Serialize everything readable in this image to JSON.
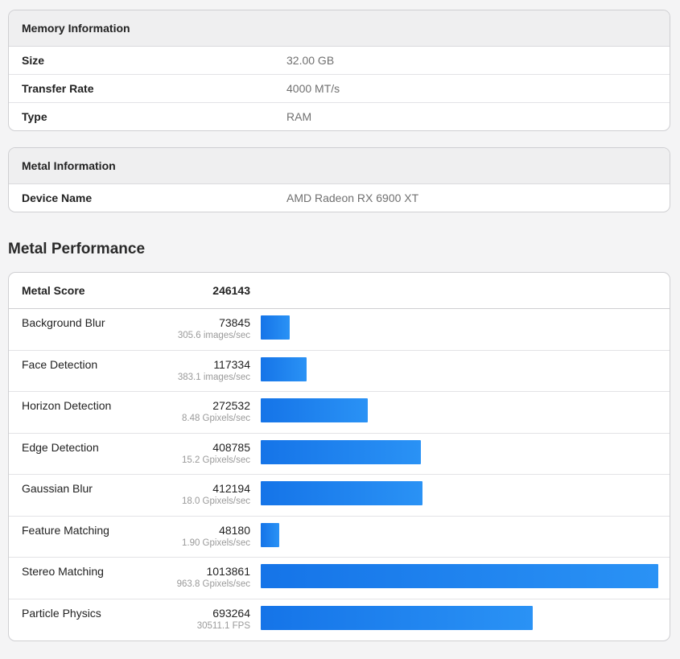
{
  "memory": {
    "title": "Memory Information",
    "rows": [
      {
        "label": "Size",
        "value": "32.00 GB"
      },
      {
        "label": "Transfer Rate",
        "value": "4000 MT/s"
      },
      {
        "label": "Type",
        "value": "RAM"
      }
    ]
  },
  "metal_info": {
    "title": "Metal Information",
    "rows": [
      {
        "label": "Device Name",
        "value": "AMD Radeon RX 6900 XT"
      }
    ]
  },
  "performance": {
    "title": "Metal Performance",
    "score_label": "Metal Score",
    "score_value": "246143",
    "max_score": 1013861,
    "bar_color_start": "#1574e8",
    "bar_color_end": "#2a92f5",
    "tests": [
      {
        "name": "Background Blur",
        "score": "73845",
        "rate": "305.6 images/sec",
        "value": 73845
      },
      {
        "name": "Face Detection",
        "score": "117334",
        "rate": "383.1 images/sec",
        "value": 117334
      },
      {
        "name": "Horizon Detection",
        "score": "272532",
        "rate": "8.48 Gpixels/sec",
        "value": 272532
      },
      {
        "name": "Edge Detection",
        "score": "408785",
        "rate": "15.2 Gpixels/sec",
        "value": 408785
      },
      {
        "name": "Gaussian Blur",
        "score": "412194",
        "rate": "18.0 Gpixels/sec",
        "value": 412194
      },
      {
        "name": "Feature Matching",
        "score": "48180",
        "rate": "1.90 Gpixels/sec",
        "value": 48180
      },
      {
        "name": "Stereo Matching",
        "score": "1013861",
        "rate": "963.8 Gpixels/sec",
        "value": 1013861
      },
      {
        "name": "Particle Physics",
        "score": "693264",
        "rate": "30511.1 FPS",
        "value": 693264
      }
    ]
  }
}
